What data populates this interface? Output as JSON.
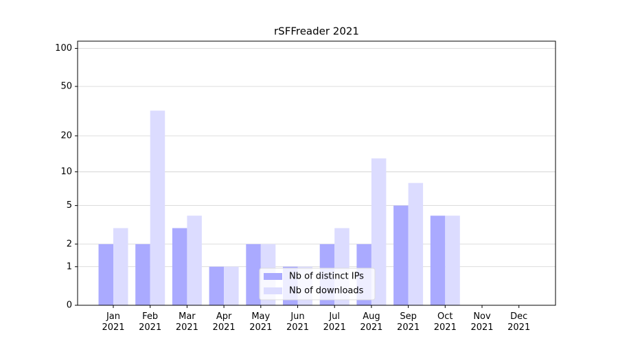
{
  "chart_data": {
    "type": "bar",
    "title": "rSFFreader 2021",
    "categories": [
      "Jan\n2021",
      "Feb\n2021",
      "Mar\n2021",
      "Apr\n2021",
      "May\n2021",
      "Jun\n2021",
      "Jul\n2021",
      "Aug\n2021",
      "Sep\n2021",
      "Oct\n2021",
      "Nov\n2021",
      "Dec\n2021"
    ],
    "series": [
      {
        "name": "Nb of distinct IPs",
        "color": "#aaaaff",
        "values": [
          2,
          2,
          3,
          1,
          2,
          1,
          2,
          2,
          5,
          4,
          0,
          0
        ]
      },
      {
        "name": "Nb of downloads",
        "color": "#dcdcff",
        "values": [
          3,
          32,
          4,
          1,
          2,
          1,
          3,
          13,
          8,
          4,
          0,
          0
        ]
      }
    ],
    "y_scale": "log1p",
    "ylim": [
      0,
      114
    ],
    "yticks": [
      0,
      1,
      2,
      5,
      10,
      20,
      50,
      100
    ],
    "grid": true,
    "legend": "lower center"
  }
}
